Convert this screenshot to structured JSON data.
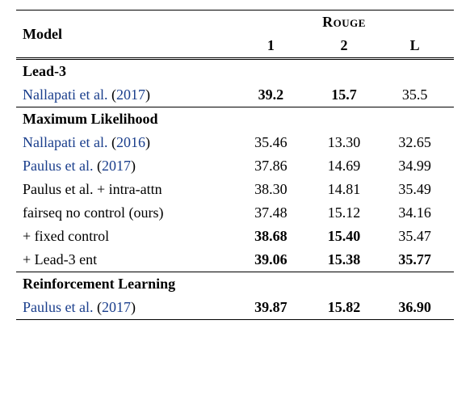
{
  "headers": {
    "model": "Model",
    "rouge": "Rouge",
    "col1": "1",
    "col2": "2",
    "colL": "L"
  },
  "sections": [
    {
      "name": "Lead-3",
      "rows": [
        {
          "label": "Nallapati et al.",
          "citeYear": "2017",
          "isCite": true,
          "r1": "39.2",
          "r1b": true,
          "r2": "15.7",
          "r2b": true,
          "rL": "35.5",
          "rLb": false
        }
      ]
    },
    {
      "name": "Maximum Likelihood",
      "rows": [
        {
          "label": "Nallapati et al.",
          "citeYear": "2016",
          "isCite": true,
          "r1": "35.46",
          "r1b": false,
          "r2": "13.30",
          "r2b": false,
          "rL": "32.65",
          "rLb": false
        },
        {
          "label": "Paulus et al.",
          "citeYear": "2017",
          "isCite": true,
          "r1": "37.86",
          "r1b": false,
          "r2": "14.69",
          "r2b": false,
          "rL": "34.99",
          "rLb": false
        },
        {
          "label": "Paulus et al. + intra-attn",
          "isCite": false,
          "r1": "38.30",
          "r1b": false,
          "r2": "14.81",
          "r2b": false,
          "rL": "35.49",
          "rLb": false
        },
        {
          "label": "fairseq no control (ours)",
          "isCite": false,
          "r1": "37.48",
          "r1b": false,
          "r2": "15.12",
          "r2b": false,
          "rL": "34.16",
          "rLb": false
        },
        {
          "label": "+ fixed control",
          "isCite": false,
          "r1": "38.68",
          "r1b": true,
          "r2": "15.40",
          "r2b": true,
          "rL": "35.47",
          "rLb": false
        },
        {
          "label": "+ Lead-3 ent",
          "isCite": false,
          "r1": "39.06",
          "r1b": true,
          "r2": "15.38",
          "r2b": true,
          "rL": "35.77",
          "rLb": true
        }
      ]
    },
    {
      "name": "Reinforcement Learning",
      "rows": [
        {
          "label": "Paulus et al.",
          "citeYear": "2017",
          "isCite": true,
          "r1": "39.87",
          "r1b": true,
          "r2": "15.82",
          "r2b": true,
          "rL": "36.90",
          "rLb": true
        }
      ]
    }
  ],
  "style": {
    "citeColor": "#1a3e8c",
    "textColor": "#000000",
    "bgColor": "#ffffff",
    "fontSize": 18,
    "fontFamily": "Times New Roman"
  }
}
